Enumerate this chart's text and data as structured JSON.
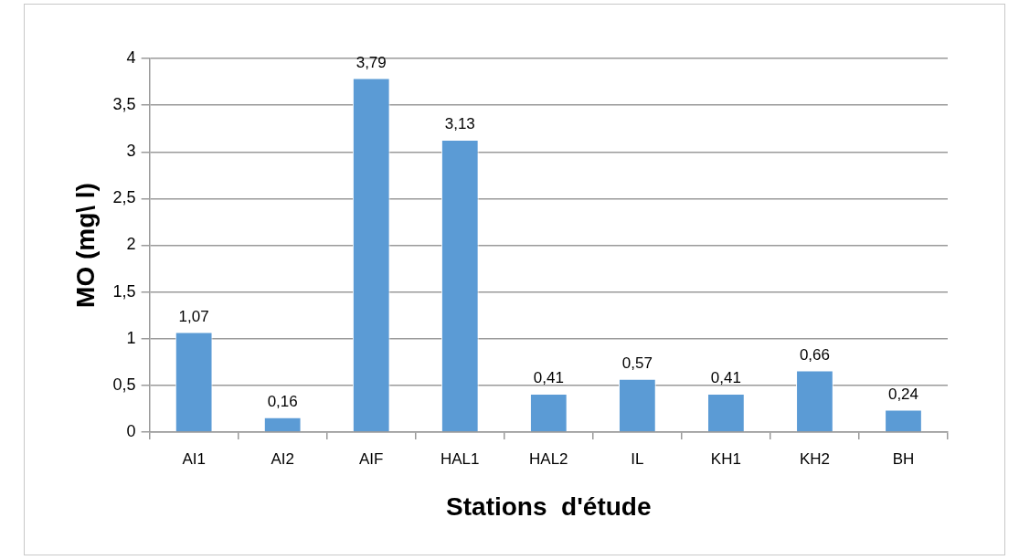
{
  "chart_data": {
    "type": "bar",
    "xlabel": "Stations  d'étude",
    "ylabel": "MO (mg\\ l)",
    "categories": [
      "AI1",
      "AI2",
      "AIF",
      "HAL1",
      "HAL2",
      "IL",
      "KH1",
      "KH2",
      "BH"
    ],
    "values": [
      1.07,
      0.16,
      3.79,
      3.13,
      0.41,
      0.57,
      0.41,
      0.66,
      0.24
    ],
    "value_labels": [
      "1,07",
      "0,16",
      "3,79",
      "3,13",
      "0,41",
      "0,57",
      "0,41",
      "0,66",
      "0,24"
    ],
    "color": "#5b9bd5",
    "ylim": [
      0,
      4
    ],
    "yticks": [
      0,
      {
        "value": 0.5,
        "label": "0,5"
      },
      1,
      {
        "value": 1.5,
        "label": "1,5"
      },
      2,
      {
        "value": 2.5,
        "label": "2,5"
      },
      3,
      {
        "value": 3.5,
        "label": "3,5"
      },
      4
    ],
    "grid": "y"
  }
}
